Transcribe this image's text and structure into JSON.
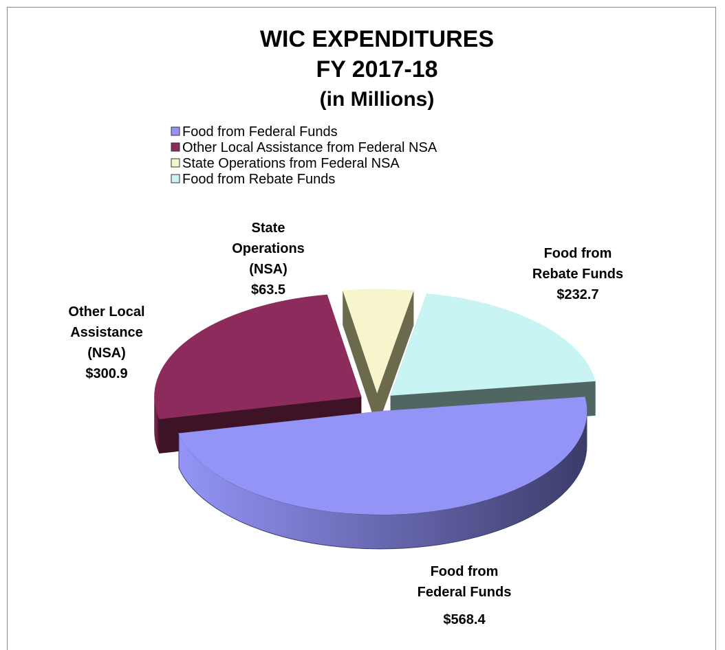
{
  "chart_data": {
    "type": "pie3d",
    "title": [
      "WIC EXPENDITURES",
      "FY 2017-18"
    ],
    "subtitle": "(in Millions)",
    "categories": [
      "Food from Federal Funds",
      "Other Local Assistance from Federal NSA",
      "State Operations from Federal NSA",
      "Food from Rebate Funds"
    ],
    "values": [
      568.4,
      300.9,
      63.5,
      232.7
    ],
    "value_labels": [
      "$568.4",
      "$300.9",
      "$63.5",
      "$232.7"
    ],
    "data_labels": [
      [
        "Food from",
        "Federal Funds"
      ],
      [
        "Other Local",
        "Assistance",
        "(NSA)"
      ],
      [
        "State",
        "Operations",
        "(NSA)"
      ],
      [
        "Food from",
        "Rebate Funds"
      ]
    ],
    "colors": [
      "#9494f7",
      "#8c2b5c",
      "#f7f5cc",
      "#c8f5f3"
    ],
    "side_colors": [
      "#3c3c6a",
      "#3e1326",
      "#6b6a4c",
      "#4f6663"
    ],
    "legend": "top"
  }
}
